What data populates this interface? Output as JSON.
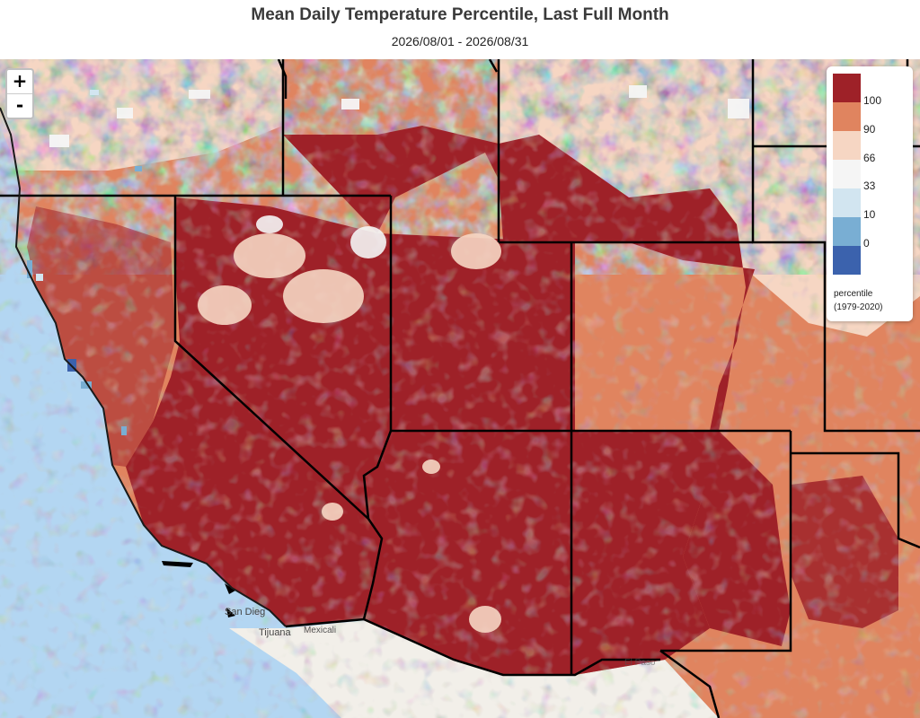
{
  "title": "Mean Daily Temperature Percentile, Last Full Month",
  "subtitle": "2026/08/01 - 2026/08/31",
  "zoom": {
    "in_label": "+",
    "out_label": "-"
  },
  "legend": {
    "colors": [
      "#9e2128",
      "#e0845f",
      "#f6d6c3",
      "#f5f5f5",
      "#d2e5f0",
      "#79aed3",
      "#3b62ad"
    ],
    "ticks": [
      "100",
      "90",
      "66",
      "33",
      "10",
      "0"
    ],
    "title_line1": "percentile",
    "title_line2": "(1979-2020)"
  },
  "basemap": {
    "ocean": "#b3d6f2",
    "land": "#f2efe9"
  },
  "cities": {
    "san_diego": "San Dieg",
    "tijuana": "Tijuana",
    "mexicali": "Mexicali",
    "el_paso": "El Paso"
  }
}
